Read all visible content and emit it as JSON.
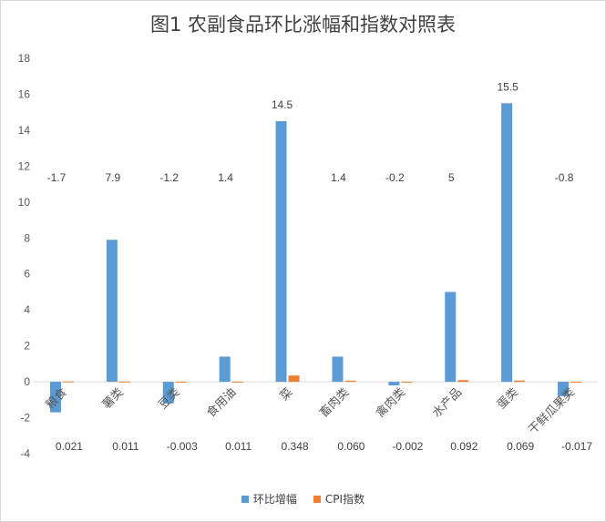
{
  "chart_data": {
    "type": "bar",
    "title": "图1  农副食品环比涨幅和指数对照表",
    "categories": [
      "粮食",
      "薯类",
      "豆类",
      "食用油",
      "菜",
      "畜肉类",
      "禽肉类",
      "水产品",
      "蛋类",
      "干鲜瓜果类"
    ],
    "series": [
      {
        "name": "环比增幅",
        "color": "#5b9bd5",
        "values": [
          -1.7,
          7.9,
          -1.2,
          1.4,
          14.5,
          1.4,
          -0.2,
          5,
          15.5,
          -0.8
        ],
        "labels": [
          "-1.7",
          "7.9",
          "-1.2",
          "1.4",
          "14.5",
          "1.4",
          "-0.2",
          "5",
          "15.5",
          "-0.8"
        ]
      },
      {
        "name": "CPI指数",
        "color": "#ed7d31",
        "values": [
          0.021,
          0.011,
          -0.003,
          0.011,
          0.348,
          0.06,
          -0.002,
          0.092,
          0.069,
          -0.017
        ],
        "labels": [
          "0.021",
          "0.011",
          "-0.003",
          "0.011",
          "0.348",
          "0.060",
          "-0.002",
          "0.092",
          "0.069",
          "-0.017"
        ]
      }
    ],
    "yticks": [
      "-4",
      "-2",
      "0",
      "2",
      "4",
      "6",
      "8",
      "10",
      "12",
      "14",
      "16",
      "18"
    ],
    "ylim": [
      -4,
      18
    ],
    "grid": false,
    "legend_position": "bottom"
  }
}
